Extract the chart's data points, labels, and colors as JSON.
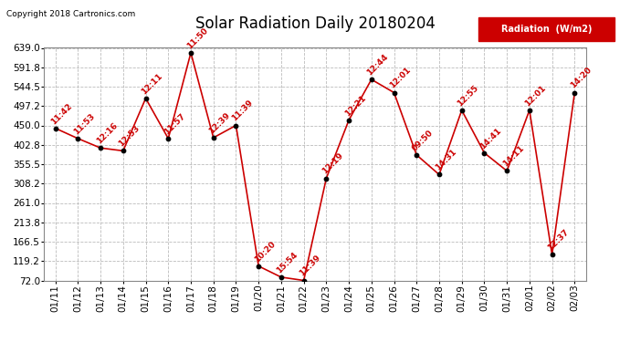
{
  "title": "Solar Radiation Daily 20180204",
  "copyright_text": "Copyright 2018 Cartronics.com",
  "legend_label": "Radiation  (W/m2)",
  "dates": [
    "01/11",
    "01/12",
    "01/13",
    "01/14",
    "01/15",
    "01/16",
    "01/17",
    "01/18",
    "01/19",
    "01/20",
    "01/21",
    "01/22",
    "01/23",
    "01/24",
    "01/25",
    "01/26",
    "01/27",
    "01/28",
    "01/29",
    "01/30",
    "01/31",
    "02/01",
    "02/02",
    "02/03"
  ],
  "values": [
    443,
    418,
    395,
    388,
    516,
    418,
    627,
    420,
    450,
    107,
    80,
    72,
    321,
    463,
    562,
    530,
    378,
    330,
    487,
    383,
    339,
    487,
    135,
    530
  ],
  "time_labels": [
    "11:42",
    "11:53",
    "12:16",
    "12:53",
    "12:11",
    "11:57",
    "11:50",
    "12:39",
    "11:39",
    "10:20",
    "15:54",
    "11:39",
    "12:19",
    "12:21",
    "12:44",
    "12:01",
    "09:50",
    "14:31",
    "12:55",
    "14:41",
    "14:11",
    "12:01",
    "12:37",
    "14:20"
  ],
  "line_color": "#cc0000",
  "marker_color": "#000000",
  "bg_color": "#ffffff",
  "grid_color": "#bbbbbb",
  "label_color": "#cc0000",
  "legend_bg": "#cc0000",
  "legend_fg": "#ffffff",
  "yticks": [
    72.0,
    119.2,
    166.5,
    213.8,
    261.0,
    308.2,
    355.5,
    402.8,
    450.0,
    497.2,
    544.5,
    591.8,
    639.0
  ],
  "ylim": [
    72.0,
    639.0
  ],
  "title_fontsize": 12,
  "label_fontsize": 6.5,
  "tick_fontsize": 7.5
}
